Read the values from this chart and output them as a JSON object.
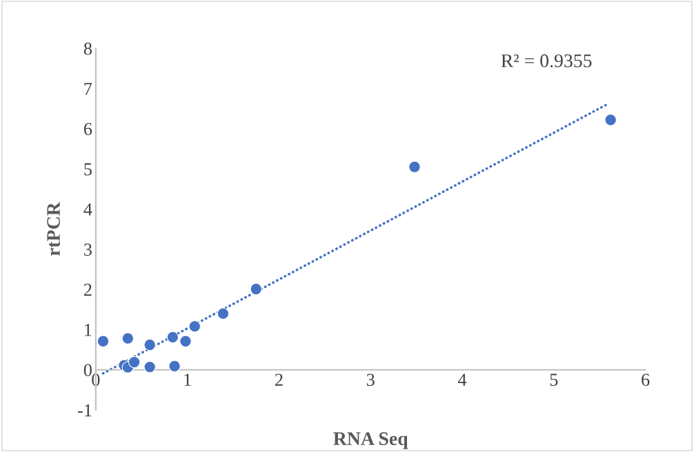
{
  "chart_data": {
    "type": "scatter",
    "xlabel": "RNA Seq",
    "ylabel": "rtPCR",
    "xlim": [
      0,
      6
    ],
    "xticks": [
      0,
      1,
      2,
      3,
      4,
      5,
      6
    ],
    "ylim": [
      -1,
      8
    ],
    "yticks": [
      -1,
      0,
      1,
      2,
      3,
      4,
      5,
      6,
      7,
      8
    ],
    "grid": false,
    "marker": "circle",
    "legend": false,
    "annotations": [
      "R² = 0.9355"
    ],
    "series": [
      {
        "color": "#4472c4",
        "x": [
          0.08,
          0.35,
          0.59,
          0.31,
          0.35,
          0.42,
          0.59,
          0.84,
          0.86,
          0.98,
          1.08,
          1.39,
          1.75,
          3.48,
          5.62
        ],
        "values": [
          0.71,
          0.78,
          0.62,
          0.11,
          0.06,
          0.19,
          0.07,
          0.81,
          0.09,
          0.71,
          1.08,
          1.4,
          2.01,
          5.05,
          6.22
        ]
      },
      {
        "type": "line",
        "color": "#4472c4",
        "line_style": "dotted",
        "marker": "none",
        "x": [
          0.08,
          5.6
        ],
        "values": [
          -0.09,
          6.63
        ]
      }
    ]
  }
}
